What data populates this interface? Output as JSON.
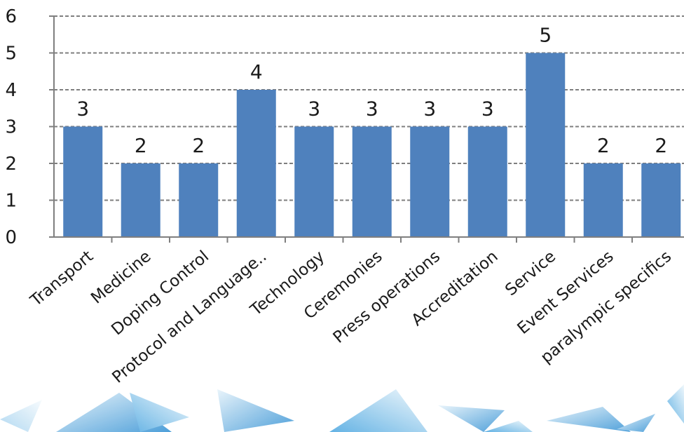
{
  "chart_data": {
    "type": "bar",
    "categories": [
      "Transport",
      "Medicine",
      "Doping Control",
      "Protocol and Language..",
      "Technology",
      "Ceremonies",
      "Press operations",
      "Accreditation",
      "Service",
      "Event Services",
      "paralympic specifics"
    ],
    "values": [
      3,
      2,
      2,
      4,
      3,
      3,
      3,
      3,
      5,
      2,
      2
    ],
    "data_labels": [
      "3",
      "2",
      "2",
      "4",
      "3",
      "3",
      "3",
      "3",
      "5",
      "2",
      "2"
    ],
    "y_ticks": [
      "0",
      "1",
      "2",
      "3",
      "4",
      "5",
      "6"
    ],
    "ylim": [
      0,
      6
    ],
    "grid": true,
    "bar_color": "#4f81bd",
    "grid_color": "#7f7f7f",
    "decor_color": "#3b9ad9"
  }
}
